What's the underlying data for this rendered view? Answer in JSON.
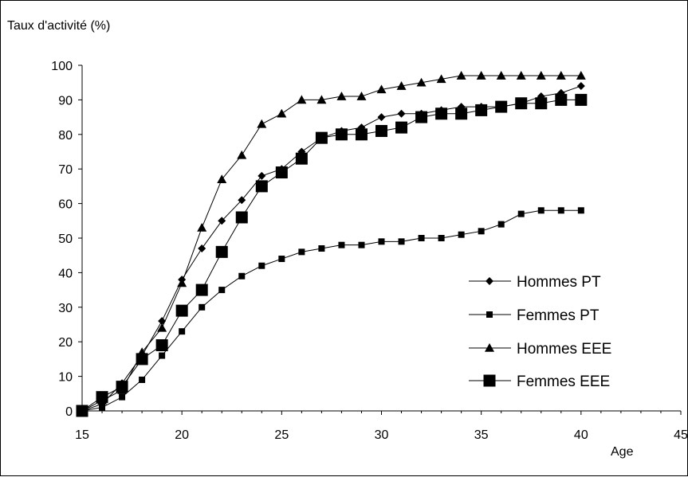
{
  "chart_data": {
    "type": "line",
    "title": "",
    "ylabel": "Taux d'activité (%)",
    "xlabel": "Age",
    "xlim": [
      15,
      45
    ],
    "ylim": [
      0,
      100
    ],
    "x_ticks": [
      15,
      20,
      25,
      30,
      35,
      40,
      45
    ],
    "y_ticks": [
      0,
      10,
      20,
      30,
      40,
      50,
      60,
      70,
      80,
      90,
      100
    ],
    "grid": false,
    "legend_position": "bottom-right",
    "x": [
      15,
      16,
      17,
      18,
      19,
      20,
      21,
      22,
      23,
      24,
      25,
      26,
      27,
      28,
      29,
      30,
      31,
      32,
      33,
      34,
      35,
      36,
      37,
      38,
      39,
      40
    ],
    "series": [
      {
        "name": "Hommes PT",
        "marker": "diamond",
        "values": [
          0,
          2,
          8,
          16,
          26,
          38,
          47,
          55,
          61,
          68,
          70,
          75,
          79,
          81,
          82,
          85,
          86,
          86,
          87,
          88,
          88,
          88,
          89,
          91,
          92,
          94
        ]
      },
      {
        "name": "Femmes PT",
        "marker": "small-square",
        "values": [
          0,
          1,
          4,
          9,
          16,
          23,
          30,
          35,
          39,
          42,
          44,
          46,
          47,
          48,
          48,
          49,
          49,
          50,
          50,
          51,
          52,
          54,
          57,
          58,
          58,
          58
        ]
      },
      {
        "name": "Hommes EEE",
        "marker": "triangle",
        "values": [
          0,
          3,
          6,
          17,
          24,
          37,
          53,
          67,
          74,
          83,
          86,
          90,
          90,
          91,
          91,
          93,
          94,
          95,
          96,
          97,
          97,
          97,
          97,
          97,
          97,
          97
        ]
      },
      {
        "name": "Femmes EEE",
        "marker": "big-square",
        "values": [
          0,
          4,
          7,
          15,
          19,
          29,
          35,
          46,
          56,
          65,
          69,
          73,
          79,
          80,
          80,
          81,
          82,
          85,
          86,
          86,
          87,
          88,
          89,
          89,
          90,
          90
        ]
      }
    ]
  }
}
